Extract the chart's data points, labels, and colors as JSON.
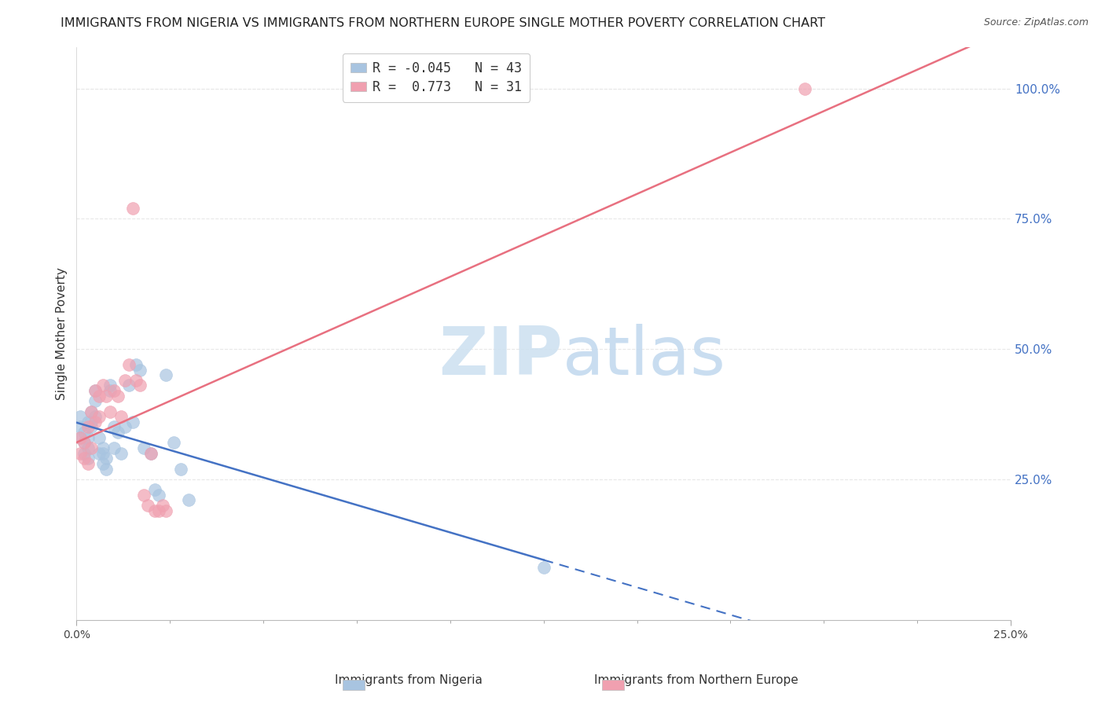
{
  "title": "IMMIGRANTS FROM NIGERIA VS IMMIGRANTS FROM NORTHERN EUROPE SINGLE MOTHER POVERTY CORRELATION CHART",
  "source": "Source: ZipAtlas.com",
  "ylabel": "Single Mother Poverty",
  "right_ytick_labels": [
    "100.0%",
    "75.0%",
    "50.0%",
    "25.0%"
  ],
  "right_ytick_vals": [
    1.0,
    0.75,
    0.5,
    0.25
  ],
  "xlim": [
    0.0,
    0.25
  ],
  "ylim": [
    -0.02,
    1.08
  ],
  "R_nigeria": -0.045,
  "N_nigeria": 43,
  "R_northern": 0.773,
  "N_northern": 31,
  "color_nigeria": "#a8c4e0",
  "color_northern": "#f0a0b0",
  "line_color_nigeria": "#4472c4",
  "line_color_northern": "#e87080",
  "legend_label_nigeria": "Immigrants from Nigeria",
  "legend_label_northern": "Immigrants from Northern Europe",
  "nigeria_x": [
    0.001,
    0.001,
    0.001,
    0.002,
    0.002,
    0.002,
    0.003,
    0.003,
    0.003,
    0.003,
    0.004,
    0.004,
    0.004,
    0.005,
    0.005,
    0.005,
    0.006,
    0.006,
    0.007,
    0.007,
    0.007,
    0.008,
    0.008,
    0.009,
    0.009,
    0.01,
    0.01,
    0.011,
    0.012,
    0.013,
    0.014,
    0.015,
    0.016,
    0.017,
    0.018,
    0.02,
    0.021,
    0.022,
    0.024,
    0.026,
    0.028,
    0.03,
    0.125
  ],
  "nigeria_y": [
    0.33,
    0.37,
    0.35,
    0.32,
    0.3,
    0.34,
    0.31,
    0.33,
    0.29,
    0.36,
    0.35,
    0.38,
    0.36,
    0.42,
    0.37,
    0.4,
    0.33,
    0.3,
    0.28,
    0.3,
    0.31,
    0.29,
    0.27,
    0.43,
    0.42,
    0.35,
    0.31,
    0.34,
    0.3,
    0.35,
    0.43,
    0.36,
    0.47,
    0.46,
    0.31,
    0.3,
    0.23,
    0.22,
    0.45,
    0.32,
    0.27,
    0.21,
    0.08
  ],
  "northern_x": [
    0.001,
    0.001,
    0.002,
    0.002,
    0.003,
    0.003,
    0.004,
    0.004,
    0.005,
    0.005,
    0.006,
    0.006,
    0.007,
    0.008,
    0.009,
    0.01,
    0.011,
    0.012,
    0.013,
    0.014,
    0.015,
    0.016,
    0.017,
    0.018,
    0.019,
    0.02,
    0.021,
    0.022,
    0.023,
    0.024,
    0.195
  ],
  "northern_y": [
    0.3,
    0.33,
    0.32,
    0.29,
    0.28,
    0.35,
    0.31,
    0.38,
    0.36,
    0.42,
    0.41,
    0.37,
    0.43,
    0.41,
    0.38,
    0.42,
    0.41,
    0.37,
    0.44,
    0.47,
    0.77,
    0.44,
    0.43,
    0.22,
    0.2,
    0.3,
    0.19,
    0.19,
    0.2,
    0.19,
    1.0
  ],
  "watermark_top": "ZIP",
  "watermark_bottom": "atlas",
  "watermark_color_zip": "#d5e5f5",
  "watermark_color_atlas": "#c8ddf0",
  "background_color": "#ffffff",
  "grid_color": "#e8e8e8",
  "title_fontsize": 11.5,
  "source_fontsize": 9,
  "tick_fontsize": 10,
  "legend_fontsize": 12,
  "ylabel_fontsize": 11
}
